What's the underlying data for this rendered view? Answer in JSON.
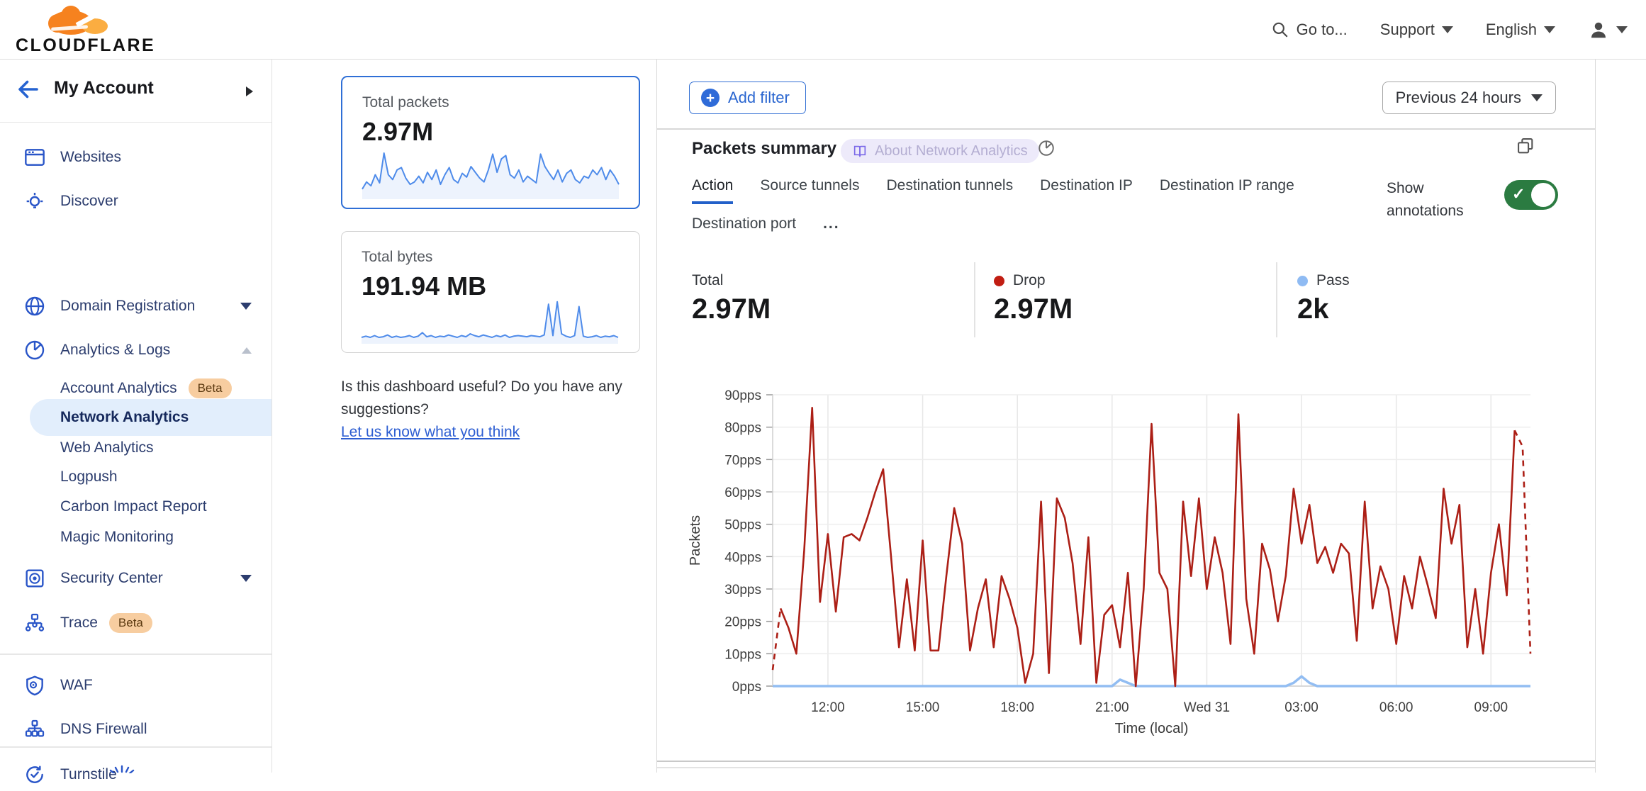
{
  "topbar": {
    "brand": "CLOUDFLARE",
    "goto": "Go to...",
    "support": "Support",
    "language": "English"
  },
  "sidebar": {
    "title": "My Account",
    "items": [
      {
        "label": "Websites"
      },
      {
        "label": "Discover"
      },
      {
        "label": "Domain Registration"
      },
      {
        "label": "Analytics & Logs"
      },
      {
        "label": "Account Analytics",
        "badge": "Beta"
      },
      {
        "label": "Network Analytics"
      },
      {
        "label": "Web Analytics"
      },
      {
        "label": "Logpush"
      },
      {
        "label": "Carbon Impact Report"
      },
      {
        "label": "Magic Monitoring"
      },
      {
        "label": "Security Center"
      },
      {
        "label": "Trace",
        "badge": "Beta"
      },
      {
        "label": "WAF"
      },
      {
        "label": "DNS Firewall"
      },
      {
        "label": "Turnstile"
      }
    ]
  },
  "summary_cards": {
    "packets": {
      "label": "Total packets",
      "value": "2.97M"
    },
    "bytes": {
      "label": "Total bytes",
      "value": "191.94 MB"
    }
  },
  "feedback": {
    "question": "Is this dashboard useful? Do you have any suggestions?",
    "link": "Let us know what you think"
  },
  "main": {
    "add_filter": "Add filter",
    "time_range": "Previous 24 hours",
    "panel": {
      "title": "Packets summary",
      "about_badge": "About Network Analytics",
      "tabs": [
        "Action",
        "Source tunnels",
        "Destination tunnels",
        "Destination IP",
        "Destination IP range",
        "Destination port"
      ],
      "tabs_more": "...",
      "active_tab": "Action",
      "show_annotations": "Show annotations",
      "stats": [
        {
          "label": "Total",
          "value": "2.97M",
          "color": ""
        },
        {
          "label": "Drop",
          "value": "2.97M",
          "color": "#c11d12"
        },
        {
          "label": "Pass",
          "value": "2k",
          "color": "#8fbbf3"
        }
      ]
    }
  },
  "chart_data": [
    {
      "type": "line",
      "title": "Packets summary",
      "xlabel": "Time (local)",
      "ylabel": "Packets",
      "ylim": [
        0,
        90
      ],
      "y_tick_step": 10,
      "y_unit": "pps",
      "grid": true,
      "legend_position": "none",
      "x_range_hours": [
        10.25,
        34.25
      ],
      "interval_minutes": 15,
      "x_tick_hours": [
        12,
        15,
        18,
        21,
        24,
        27,
        30,
        33
      ],
      "x_tick_labels": [
        "12:00",
        "15:00",
        "18:00",
        "21:00",
        "Wed 31",
        "03:00",
        "06:00",
        "09:00"
      ],
      "series": [
        {
          "name": "Drop",
          "color": "#ac1f16",
          "dash_head": 1,
          "dash_tail": 2,
          "values": [
            5,
            24,
            18,
            10,
            42,
            86,
            26,
            47,
            23,
            46,
            47,
            45,
            52,
            60,
            67,
            40,
            12,
            33,
            11,
            45,
            11,
            11,
            34,
            55,
            44,
            11,
            24,
            33,
            12,
            34,
            27,
            18,
            1,
            10,
            57,
            4,
            58,
            52,
            38,
            13,
            46,
            1,
            22,
            25,
            12,
            35,
            0,
            30,
            81,
            35,
            30,
            0,
            57,
            34,
            58,
            30,
            46,
            35,
            13,
            84,
            27,
            10,
            44,
            36,
            20,
            34,
            61,
            44,
            56,
            38,
            43,
            35,
            44,
            41,
            14,
            57,
            24,
            37,
            30,
            13,
            34,
            24,
            40,
            31,
            21,
            61,
            44,
            56,
            12,
            30,
            10,
            35,
            50,
            28,
            79,
            74,
            10
          ]
        },
        {
          "name": "Pass",
          "color": "#92bdf2",
          "dash_head": 0,
          "dash_tail": 0,
          "values": [
            0,
            0,
            0,
            0,
            0,
            0,
            0,
            0,
            0,
            0,
            0,
            0,
            0,
            0,
            0,
            0,
            0,
            0,
            0,
            0,
            0,
            0,
            0,
            0,
            0,
            0,
            0,
            0,
            0,
            0,
            0,
            0,
            0,
            0,
            0,
            0,
            0,
            0,
            0,
            0,
            0,
            0,
            0,
            0,
            2,
            1,
            0,
            0,
            0,
            0,
            0,
            0,
            0,
            0,
            0,
            0,
            0,
            0,
            0,
            0,
            0,
            0,
            0,
            0,
            0,
            0,
            1,
            3,
            1,
            0,
            0,
            0,
            0,
            0,
            0,
            0,
            0,
            0,
            0,
            0,
            0,
            0,
            0,
            0,
            0,
            0,
            0,
            0,
            0,
            0,
            0,
            0,
            0,
            0,
            0,
            0,
            0
          ]
        }
      ]
    },
    {
      "type": "sparkline",
      "name": "Total packets",
      "color": "#4e8bea",
      "values": [
        15,
        30,
        22,
        45,
        28,
        90,
        45,
        35,
        55,
        60,
        38,
        25,
        30,
        42,
        28,
        50,
        35,
        55,
        25,
        45,
        60,
        35,
        28,
        48,
        40,
        62,
        50,
        38,
        30,
        55,
        88,
        50,
        78,
        85,
        45,
        38,
        55,
        30,
        42,
        35,
        28,
        88,
        62,
        48,
        35,
        55,
        30,
        48,
        55,
        35,
        28,
        42,
        38,
        55,
        45,
        60,
        35,
        55,
        42,
        25
      ]
    },
    {
      "type": "sparkline",
      "name": "Total bytes",
      "color": "#4e8bea",
      "values": [
        6,
        8,
        6,
        9,
        6,
        7,
        10,
        6,
        8,
        6,
        7,
        9,
        6,
        8,
        14,
        7,
        9,
        6,
        8,
        7,
        10,
        8,
        6,
        9,
        7,
        12,
        9,
        7,
        10,
        8,
        6,
        9,
        7,
        10,
        6,
        8,
        9,
        8,
        7,
        9,
        8,
        7,
        10,
        62,
        9,
        66,
        12,
        8,
        6,
        9,
        58,
        8,
        6,
        7,
        9,
        6,
        8,
        7,
        9,
        6
      ]
    }
  ]
}
